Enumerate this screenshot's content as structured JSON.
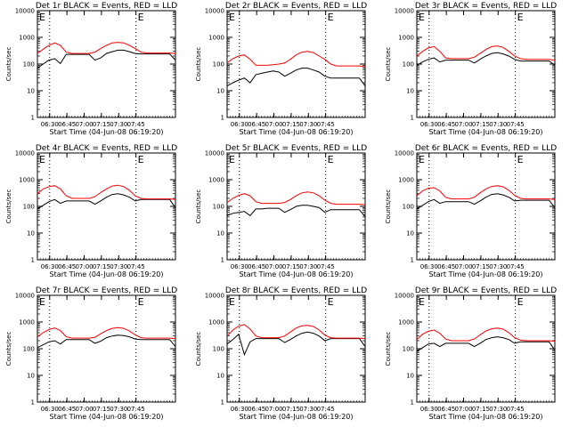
{
  "figure": {
    "yscale": "log",
    "ylim": [
      1,
      10000
    ],
    "xlim": [
      0,
      120
    ],
    "ytick_labels": [
      "1",
      "10",
      "100",
      "1000",
      "10000"
    ],
    "xtick_labels": [
      "06:30",
      "06:45",
      "07:00",
      "07:15",
      "07:30",
      "07:45"
    ],
    "xtick_values": [
      10.67,
      25.67,
      40.67,
      55.67,
      70.67,
      85.67
    ],
    "xlabel": "Start Time (04-Jun-08 06:19:20)",
    "ylabel": "Counts/sec",
    "markers": [
      "E",
      "E"
    ],
    "marker_x": [
      0,
      85.67
    ],
    "dotted_x": [
      10.67,
      85.67
    ],
    "colors": {
      "events": "#000000",
      "lld": "#ff0000"
    }
  },
  "chart_data": [
    {
      "type": "line",
      "title": "Det 1r BLACK = Events, RED = LLD",
      "series": [
        {
          "name": "Events",
          "x": [
            0,
            5,
            10,
            15,
            20,
            25,
            30,
            35,
            40,
            45,
            50,
            55,
            60,
            65,
            70,
            75,
            80,
            85,
            90,
            95,
            100,
            105,
            110,
            115,
            120
          ],
          "y": [
            70,
            100,
            140,
            160,
            105,
            230,
            230,
            230,
            230,
            230,
            140,
            170,
            250,
            290,
            330,
            330,
            290,
            250,
            240,
            240,
            240,
            240,
            240,
            240,
            140
          ]
        },
        {
          "name": "LLD",
          "x": [
            0,
            5,
            10,
            15,
            20,
            25,
            30,
            35,
            40,
            45,
            50,
            55,
            60,
            65,
            70,
            75,
            80,
            85,
            90,
            95,
            100,
            105,
            110,
            115,
            120
          ],
          "y": [
            250,
            360,
            500,
            620,
            500,
            280,
            250,
            250,
            250,
            250,
            280,
            380,
            500,
            620,
            650,
            620,
            500,
            380,
            280,
            260,
            260,
            260,
            260,
            260,
            250
          ]
        }
      ]
    },
    {
      "type": "line",
      "title": "Det 2r BLACK = Events, RED = LLD",
      "series": [
        {
          "name": "Events",
          "x": [
            0,
            5,
            10,
            15,
            20,
            25,
            30,
            35,
            40,
            45,
            50,
            55,
            60,
            65,
            70,
            75,
            80,
            85,
            90,
            95,
            100,
            105,
            110,
            115,
            120
          ],
          "y": [
            15,
            20,
            25,
            30,
            20,
            40,
            45,
            50,
            55,
            50,
            35,
            45,
            60,
            70,
            70,
            60,
            50,
            35,
            30,
            30,
            30,
            30,
            30,
            30,
            15
          ]
        },
        {
          "name": "LLD",
          "x": [
            0,
            5,
            10,
            15,
            20,
            25,
            30,
            35,
            40,
            45,
            50,
            55,
            60,
            65,
            70,
            75,
            80,
            85,
            90,
            95,
            100,
            105,
            110,
            115,
            120
          ],
          "y": [
            110,
            160,
            200,
            220,
            150,
            90,
            90,
            90,
            95,
            100,
            110,
            150,
            220,
            280,
            300,
            270,
            200,
            150,
            100,
            85,
            85,
            85,
            85,
            85,
            80
          ]
        }
      ]
    },
    {
      "type": "line",
      "title": "Det 3r BLACK = Events, RED = LLD",
      "series": [
        {
          "name": "Events",
          "x": [
            0,
            5,
            10,
            15,
            20,
            25,
            30,
            35,
            40,
            45,
            50,
            55,
            60,
            65,
            70,
            75,
            80,
            85,
            90,
            95,
            100,
            105,
            110,
            115,
            120
          ],
          "y": [
            90,
            120,
            150,
            170,
            120,
            140,
            140,
            140,
            140,
            140,
            110,
            150,
            200,
            250,
            270,
            240,
            200,
            150,
            130,
            130,
            130,
            130,
            130,
            130,
            90
          ]
        },
        {
          "name": "LLD",
          "x": [
            0,
            5,
            10,
            15,
            20,
            25,
            30,
            35,
            40,
            45,
            50,
            55,
            60,
            65,
            70,
            75,
            80,
            85,
            90,
            95,
            100,
            105,
            110,
            115,
            120
          ],
          "y": [
            200,
            300,
            400,
            450,
            300,
            170,
            160,
            160,
            160,
            160,
            180,
            250,
            350,
            450,
            480,
            420,
            300,
            200,
            160,
            150,
            150,
            150,
            150,
            150,
            140
          ]
        }
      ]
    },
    {
      "type": "line",
      "title": "Det 4r BLACK = Events, RED = LLD",
      "series": [
        {
          "name": "Events",
          "x": [
            0,
            5,
            10,
            15,
            20,
            25,
            30,
            35,
            40,
            45,
            50,
            55,
            60,
            65,
            70,
            75,
            80,
            85,
            90,
            95,
            100,
            105,
            110,
            115,
            120
          ],
          "y": [
            80,
            110,
            150,
            180,
            130,
            160,
            160,
            160,
            160,
            160,
            120,
            160,
            220,
            280,
            300,
            270,
            220,
            160,
            180,
            180,
            180,
            180,
            180,
            180,
            90
          ]
        },
        {
          "name": "LLD",
          "x": [
            0,
            5,
            10,
            15,
            20,
            25,
            30,
            35,
            40,
            45,
            50,
            55,
            60,
            65,
            70,
            75,
            80,
            85,
            90,
            95,
            100,
            105,
            110,
            115,
            120
          ],
          "y": [
            300,
            450,
            550,
            600,
            450,
            250,
            200,
            200,
            200,
            200,
            230,
            330,
            450,
            580,
            620,
            550,
            400,
            250,
            200,
            190,
            190,
            190,
            190,
            190,
            180
          ]
        }
      ]
    },
    {
      "type": "line",
      "title": "Det 5r BLACK = Events, RED = LLD",
      "series": [
        {
          "name": "Events",
          "x": [
            0,
            5,
            10,
            15,
            20,
            25,
            30,
            35,
            40,
            45,
            50,
            55,
            60,
            65,
            70,
            75,
            80,
            85,
            90,
            95,
            100,
            105,
            110,
            115,
            120
          ],
          "y": [
            45,
            55,
            60,
            65,
            45,
            80,
            80,
            85,
            85,
            85,
            60,
            75,
            100,
            110,
            110,
            100,
            90,
            60,
            75,
            75,
            75,
            75,
            75,
            75,
            40
          ]
        },
        {
          "name": "LLD",
          "x": [
            0,
            5,
            10,
            15,
            20,
            25,
            30,
            35,
            40,
            45,
            50,
            55,
            60,
            65,
            70,
            75,
            80,
            85,
            90,
            95,
            100,
            105,
            110,
            115,
            120
          ],
          "y": [
            140,
            200,
            260,
            300,
            250,
            150,
            130,
            130,
            130,
            130,
            140,
            180,
            250,
            320,
            350,
            320,
            250,
            170,
            130,
            120,
            120,
            120,
            120,
            120,
            115
          ]
        }
      ]
    },
    {
      "type": "line",
      "title": "Det 6r BLACK = Events, RED = LLD",
      "series": [
        {
          "name": "Events",
          "x": [
            0,
            5,
            10,
            15,
            20,
            25,
            30,
            35,
            40,
            45,
            50,
            55,
            60,
            65,
            70,
            75,
            80,
            85,
            90,
            95,
            100,
            105,
            110,
            115,
            120
          ],
          "y": [
            80,
            110,
            150,
            180,
            130,
            150,
            150,
            150,
            150,
            150,
            120,
            160,
            220,
            280,
            300,
            270,
            220,
            160,
            170,
            170,
            170,
            170,
            170,
            170,
            90
          ]
        },
        {
          "name": "LLD",
          "x": [
            0,
            5,
            10,
            15,
            20,
            25,
            30,
            35,
            40,
            45,
            50,
            55,
            60,
            65,
            70,
            75,
            80,
            85,
            90,
            95,
            100,
            105,
            110,
            115,
            120
          ],
          "y": [
            250,
            380,
            480,
            500,
            380,
            220,
            190,
            190,
            190,
            190,
            220,
            320,
            450,
            560,
            600,
            540,
            400,
            260,
            200,
            190,
            190,
            190,
            190,
            190,
            180
          ]
        }
      ]
    },
    {
      "type": "line",
      "title": "Det 7r BLACK = Events, RED = LLD",
      "series": [
        {
          "name": "Events",
          "x": [
            0,
            5,
            10,
            15,
            20,
            25,
            30,
            35,
            40,
            45,
            50,
            55,
            60,
            65,
            70,
            75,
            80,
            85,
            90,
            95,
            100,
            105,
            110,
            115,
            120
          ],
          "y": [
            110,
            140,
            180,
            200,
            150,
            220,
            220,
            220,
            220,
            220,
            160,
            190,
            260,
            300,
            320,
            310,
            280,
            230,
            220,
            220,
            220,
            220,
            220,
            220,
            120
          ]
        },
        {
          "name": "LLD",
          "x": [
            0,
            5,
            10,
            15,
            20,
            25,
            30,
            35,
            40,
            45,
            50,
            55,
            60,
            65,
            70,
            75,
            80,
            85,
            90,
            95,
            100,
            105,
            110,
            115,
            120
          ],
          "y": [
            280,
            400,
            520,
            600,
            480,
            280,
            250,
            250,
            250,
            250,
            270,
            360,
            480,
            580,
            620,
            580,
            460,
            330,
            260,
            250,
            250,
            250,
            250,
            250,
            240
          ]
        }
      ]
    },
    {
      "type": "line",
      "title": "Det 8r BLACK = Events, RED = LLD",
      "series": [
        {
          "name": "Events",
          "x": [
            0,
            5,
            10,
            15,
            20,
            25,
            30,
            35,
            40,
            45,
            50,
            55,
            60,
            65,
            70,
            75,
            80,
            85,
            90,
            95,
            100,
            105,
            110,
            115,
            120
          ],
          "y": [
            150,
            220,
            350,
            60,
            180,
            240,
            240,
            240,
            240,
            240,
            170,
            220,
            300,
            380,
            420,
            380,
            300,
            200,
            240,
            240,
            240,
            240,
            240,
            240,
            120
          ]
        },
        {
          "name": "LLD",
          "x": [
            0,
            5,
            10,
            15,
            20,
            25,
            30,
            35,
            40,
            45,
            50,
            55,
            60,
            65,
            70,
            75,
            80,
            85,
            90,
            95,
            100,
            105,
            110,
            115,
            120
          ],
          "y": [
            300,
            500,
            700,
            800,
            550,
            300,
            260,
            260,
            260,
            260,
            300,
            420,
            600,
            720,
            750,
            680,
            500,
            320,
            260,
            250,
            250,
            250,
            250,
            250,
            240
          ]
        }
      ]
    },
    {
      "type": "line",
      "title": "Det 9r BLACK = Events, RED = LLD",
      "series": [
        {
          "name": "Events",
          "x": [
            0,
            5,
            10,
            15,
            20,
            25,
            30,
            35,
            40,
            45,
            50,
            55,
            60,
            65,
            70,
            75,
            80,
            85,
            90,
            95,
            100,
            105,
            110,
            115,
            120
          ],
          "y": [
            80,
            110,
            150,
            160,
            120,
            160,
            160,
            160,
            160,
            160,
            120,
            160,
            220,
            260,
            280,
            260,
            220,
            160,
            180,
            180,
            180,
            180,
            180,
            180,
            90
          ]
        },
        {
          "name": "LLD",
          "x": [
            0,
            5,
            10,
            15,
            20,
            25,
            30,
            35,
            40,
            45,
            50,
            55,
            60,
            65,
            70,
            75,
            80,
            85,
            90,
            95,
            100,
            105,
            110,
            115,
            120
          ],
          "y": [
            220,
            350,
            450,
            500,
            380,
            230,
            200,
            200,
            200,
            200,
            230,
            330,
            460,
            560,
            600,
            540,
            400,
            260,
            210,
            200,
            200,
            200,
            200,
            200,
            190
          ]
        }
      ]
    }
  ]
}
